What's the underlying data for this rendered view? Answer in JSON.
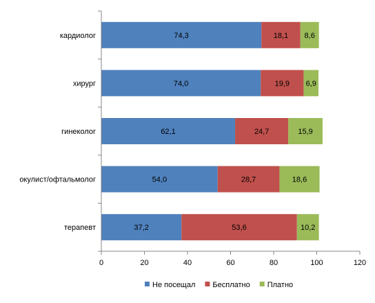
{
  "chart_data": {
    "type": "bar",
    "orientation": "horizontal",
    "stacked": true,
    "categories": [
      "кардиолог",
      "хирург",
      "гинеколог",
      "окулист/офтальмолог",
      "терапевт"
    ],
    "series": [
      {
        "name": "Не посещал",
        "color": "#4F81BD",
        "values": [
          74.3,
          74.0,
          62.1,
          54.0,
          37.2
        ],
        "labels": [
          "74,3",
          "74,0",
          "62,1",
          "54,0",
          "37,2"
        ]
      },
      {
        "name": "Бесплатно",
        "color": "#C0504D",
        "values": [
          18.1,
          19.9,
          24.7,
          28.7,
          53.6
        ],
        "labels": [
          "18,1",
          "19,9",
          "24,7",
          "28,7",
          "53,6"
        ]
      },
      {
        "name": "Платно",
        "color": "#9BBB59",
        "values": [
          8.6,
          6.9,
          15.9,
          18.6,
          10.2
        ],
        "labels": [
          "8,6",
          "6,9",
          "15,9",
          "18,6",
          "10,2"
        ]
      }
    ],
    "xlim": [
      0,
      120
    ],
    "xticks": [
      "0",
      "20",
      "40",
      "60",
      "80",
      "100",
      "120"
    ],
    "grid": false,
    "legend_position": "bottom"
  }
}
